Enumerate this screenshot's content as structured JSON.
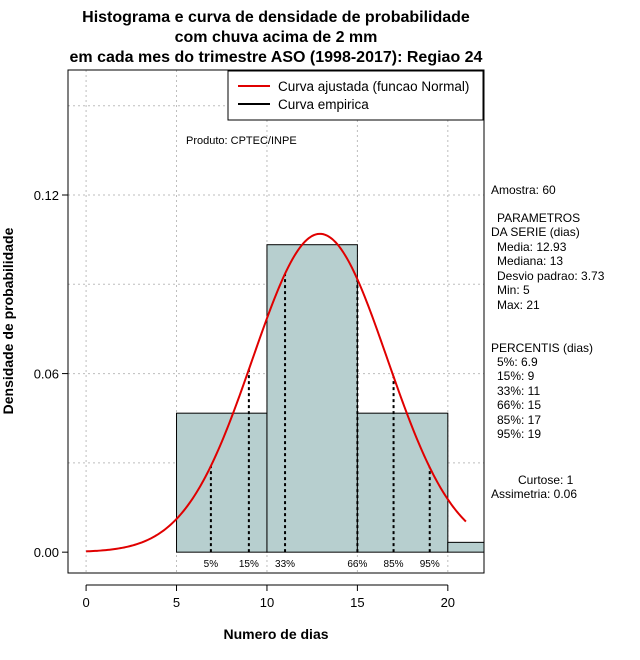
{
  "chart_data": {
    "type": "histogram",
    "title_lines": [
      "Histograma e curva de densidade de probabilidade",
      "com chuva acima de 2 mm",
      "em cada mes do trimestre ASO (1998-2017): Regiao 24"
    ],
    "xlabel": "Numero de dias",
    "ylabel": "Densidade de probabilidade",
    "xlim": [
      -1,
      22
    ],
    "ylim": [
      -0.007,
      0.162
    ],
    "xticks": [
      0,
      5,
      10,
      15,
      20
    ],
    "yticks": [
      0.0,
      0.06,
      0.12
    ],
    "ytick_labels": [
      "0.00",
      "0.06",
      "0.12"
    ],
    "grid": true,
    "bins": [
      {
        "start": 5,
        "end": 10,
        "density": 0.0467
      },
      {
        "start": 10,
        "end": 15,
        "density": 0.1033
      },
      {
        "start": 15,
        "end": 20,
        "density": 0.0467
      },
      {
        "start": 20,
        "end": 22,
        "density": 0.0033
      }
    ],
    "normal_fit": {
      "mean": 12.93,
      "sd": 3.73,
      "x_from": 0,
      "x_to": 21,
      "color": "#e00000"
    },
    "percentile_lines": [
      {
        "label": "5%",
        "x": 6.9
      },
      {
        "label": "15%",
        "x": 9
      },
      {
        "label": "33%",
        "x": 11
      },
      {
        "label": "66%",
        "x": 15
      },
      {
        "label": "85%",
        "x": 17
      },
      {
        "label": "95%",
        "x": 19
      }
    ],
    "bar_color": "#b7cfcf",
    "legend": {
      "position": "top-right",
      "entries": [
        {
          "label": "Curva ajustada (funcao Normal)",
          "color": "#e00000"
        },
        {
          "label": "Curva empirica",
          "color": "#000000"
        }
      ]
    },
    "credit": "Produto: CPTEC/INPE",
    "side_panel": {
      "sample": "Amostra: 60",
      "params_title": [
        "PARAMETROS",
        "DA SERIE (dias)"
      ],
      "params": [
        "Media: 12.93",
        "Mediana: 13",
        "Desvio padrao: 3.73",
        "Min: 5",
        "Max: 21"
      ],
      "percentis_title": "PERCENTIS (dias)",
      "percentis": [
        "5%: 6.9",
        "15%: 9",
        "33%: 11",
        "66%: 15",
        "85%: 17",
        "95%: 19"
      ],
      "curtose": "Curtose: 1",
      "assimetria": "Assimetria: 0.06"
    }
  }
}
